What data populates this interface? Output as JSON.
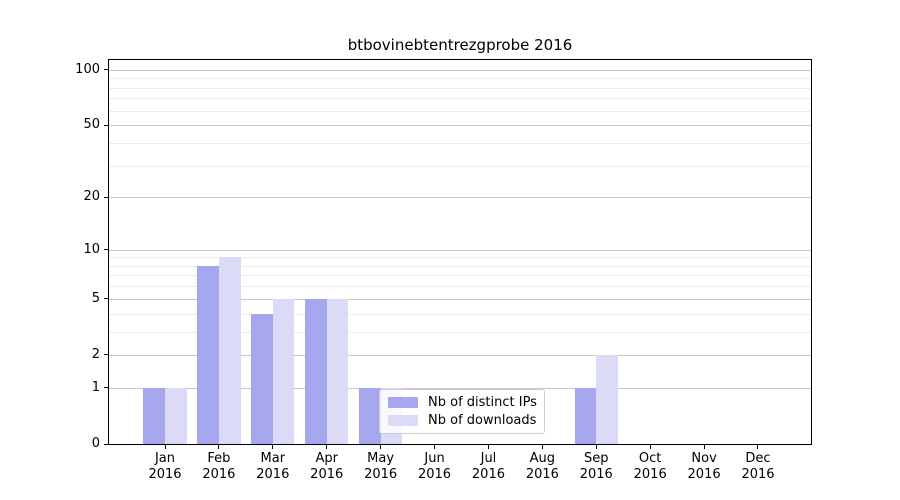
{
  "title": "btbovinebtentrezgprobe 2016",
  "chart_data": {
    "type": "bar",
    "title": "btbovinebtentrezgprobe 2016",
    "x_categories": [
      "Jan",
      "Feb",
      "Mar",
      "Apr",
      "May",
      "Jun",
      "Jul",
      "Aug",
      "Sep",
      "Oct",
      "Nov",
      "Dec"
    ],
    "x_year": "2016",
    "series": [
      {
        "name": "Nb of distinct IPs",
        "color": "#a7a7f0",
        "values": [
          1,
          8,
          4,
          5,
          1,
          0,
          0,
          0,
          1,
          0,
          0,
          0
        ]
      },
      {
        "name": "Nb of downloads",
        "color": "#dbdbf7",
        "values": [
          1,
          9,
          5,
          5,
          1,
          0,
          0,
          0,
          2,
          0,
          0,
          0
        ]
      }
    ],
    "y_scale": "log10(1+x)",
    "y_ticks": [
      0,
      1,
      2,
      5,
      10,
      20,
      50,
      100
    ],
    "y_minor_ticks": [
      3,
      4,
      6,
      7,
      8,
      9,
      30,
      40,
      60,
      70,
      80,
      90
    ],
    "ylim": [
      0,
      113
    ],
    "xlabel": "",
    "ylabel": "",
    "grid": true,
    "legend": {
      "position": "lower-center",
      "entries": [
        "Nb of distinct IPs",
        "Nb of downloads"
      ]
    },
    "colors": {
      "major_grid": "#c8c8c8",
      "minor_grid": "#ececec",
      "axis": "#000000",
      "background": "#ffffff"
    }
  }
}
